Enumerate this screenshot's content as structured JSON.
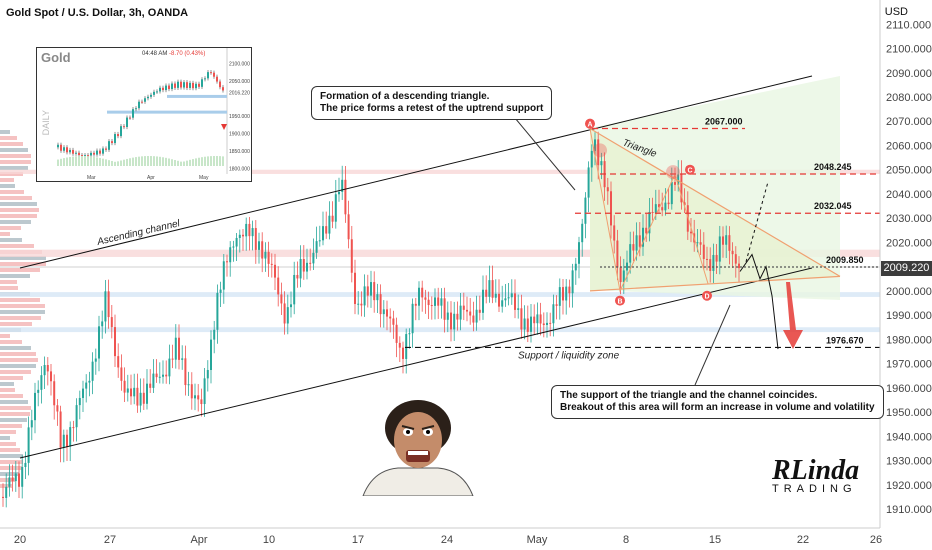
{
  "header": {
    "title": "Gold Spot / U.S. Dollar, 3h, OANDA",
    "currency": "USD",
    "current_price": "2009.220"
  },
  "chart_data": {
    "type": "candlestick",
    "ylim": [
      1905,
      2115
    ],
    "y_ticks": [
      "2110.000",
      "2100.000",
      "2090.000",
      "2080.000",
      "2070.000",
      "2060.000",
      "2050.000",
      "2040.000",
      "2030.000",
      "2020.000",
      "2010.000",
      "2000.000",
      "1990.000",
      "1980.000",
      "1970.000",
      "1960.000",
      "1950.000",
      "1940.000",
      "1930.000",
      "1920.000",
      "1910.000"
    ],
    "x_ticks": [
      "20",
      "27",
      "Apr",
      "10",
      "17",
      "24",
      "May",
      "8",
      "15",
      "22",
      "26"
    ],
    "levels": [
      {
        "label": "2067.000",
        "value": 2067.0
      },
      {
        "label": "2048.245",
        "value": 2048.245
      },
      {
        "label": "2032.045",
        "value": 2032.045
      },
      {
        "label": "2009.850",
        "value": 2009.85
      },
      {
        "label": "1976.670",
        "value": 1976.67
      }
    ],
    "annotations": {
      "channel": "Ascending channel",
      "triangle": "Triangle",
      "support_zone": "Support / liquidity zone",
      "points": [
        "A",
        "B",
        "C",
        "D"
      ]
    },
    "colors": {
      "up": "#26a69a",
      "down": "#ef5350",
      "level": "#e53935",
      "target": "#e53935"
    }
  },
  "callouts": {
    "top_line1": "Formation of a descending triangle.",
    "top_line2": "The price forms a retest of the uptrend support",
    "bottom_line1": "The support of the triangle and the channel coincides.",
    "bottom_line2": "Breakout of this area will form an increase in volume and volatility"
  },
  "inset": {
    "title": "Gold",
    "label": "DAILY",
    "time": "04:48 AM",
    "change": "-8.70 (0.43%)",
    "y_ticks": [
      "2100.000",
      "2050.000",
      "2016.220",
      "1950.000",
      "1900.000",
      "1850.000",
      "1800.000"
    ],
    "x_ticks": [
      "Mar",
      "Apr",
      "May"
    ]
  },
  "logo": {
    "main": "RLinda",
    "sub": "TRADING"
  }
}
